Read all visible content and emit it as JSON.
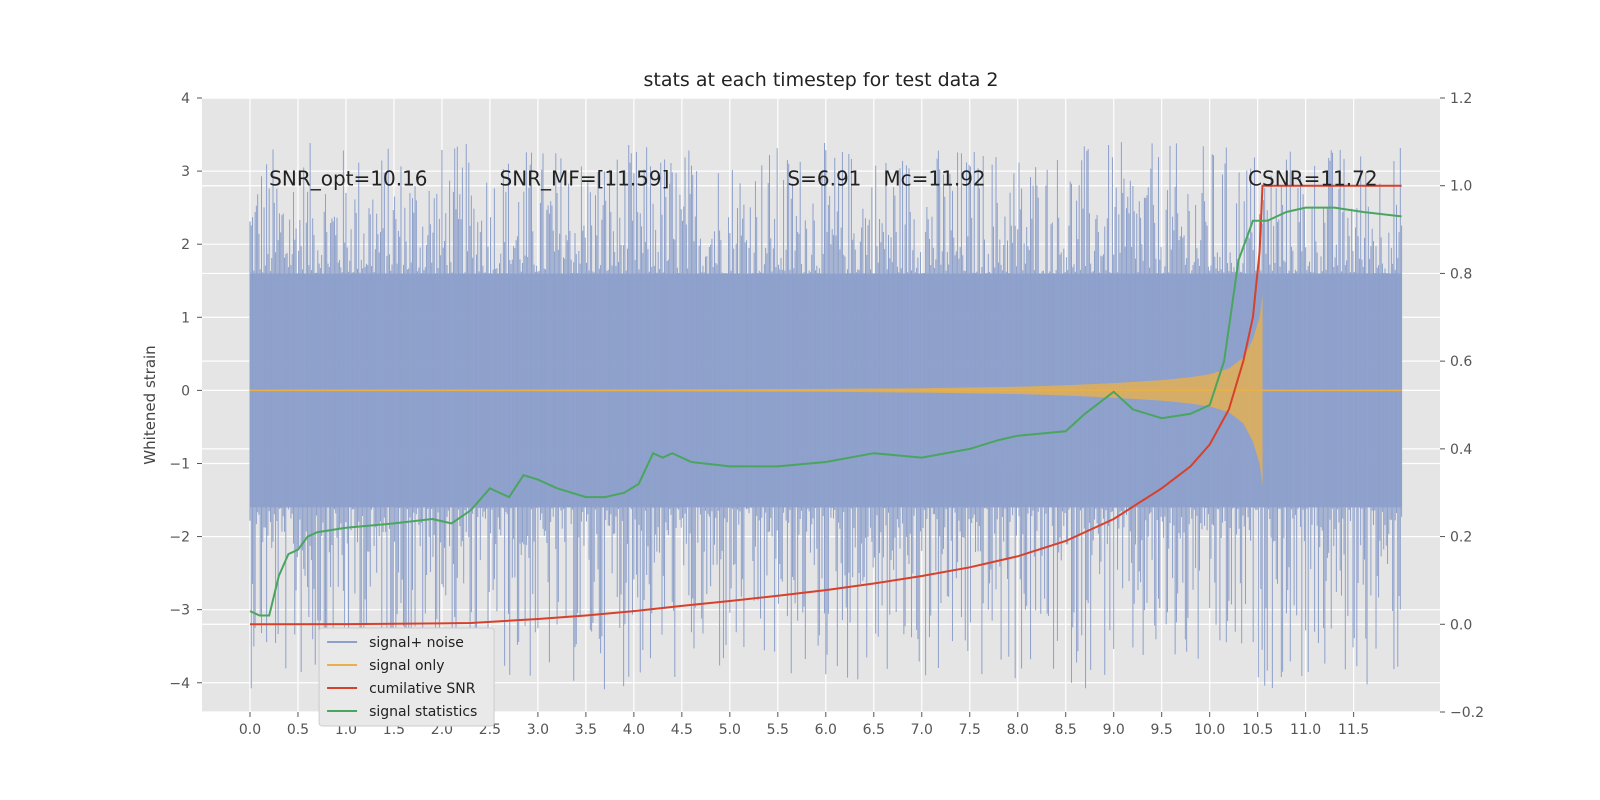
{
  "chart_data": {
    "type": "line",
    "title": "stats at each timestep for test data 2",
    "ylabel": "Whitened strain",
    "xlabel": "",
    "xlim": [
      -0.5,
      12.4
    ],
    "ylim_left": [
      -4.4,
      4.0
    ],
    "ylim_right": [
      -0.2,
      1.2
    ],
    "grid": true,
    "xticks": [
      {
        "value": 0.0,
        "label": "0.0"
      },
      {
        "value": 0.5,
        "label": "0.5"
      },
      {
        "value": 1.0,
        "label": "1.0"
      },
      {
        "value": 1.5,
        "label": "1.5"
      },
      {
        "value": 2.0,
        "label": "2.0"
      },
      {
        "value": 2.5,
        "label": "2.5"
      },
      {
        "value": 3.0,
        "label": "3.0"
      },
      {
        "value": 3.5,
        "label": "3.5"
      },
      {
        "value": 4.0,
        "label": "4.0"
      },
      {
        "value": 4.5,
        "label": "4.5"
      },
      {
        "value": 5.0,
        "label": "5.0"
      },
      {
        "value": 5.5,
        "label": "5.5"
      },
      {
        "value": 6.0,
        "label": "6.0"
      },
      {
        "value": 6.5,
        "label": "6.5"
      },
      {
        "value": 7.0,
        "label": "7.0"
      },
      {
        "value": 7.5,
        "label": "7.5"
      },
      {
        "value": 8.0,
        "label": "8.0"
      },
      {
        "value": 8.5,
        "label": "8.5"
      },
      {
        "value": 9.0,
        "label": "9.0"
      },
      {
        "value": 9.5,
        "label": "9.5"
      },
      {
        "value": 10.0,
        "label": "10.0"
      },
      {
        "value": 10.5,
        "label": "10.5"
      },
      {
        "value": 11.0,
        "label": "11.0"
      },
      {
        "value": 11.5,
        "label": "11.5"
      }
    ],
    "yticks_left": [
      {
        "value": 4,
        "label": "4"
      },
      {
        "value": 3,
        "label": "3"
      },
      {
        "value": 2,
        "label": "2"
      },
      {
        "value": 1,
        "label": "1"
      },
      {
        "value": 0,
        "label": "0"
      },
      {
        "value": -1,
        "label": "−1"
      },
      {
        "value": -2,
        "label": "−2"
      },
      {
        "value": -3,
        "label": "−3"
      },
      {
        "value": -4,
        "label": "−4"
      }
    ],
    "yticks_right": [
      {
        "value": 1.2,
        "label": "1.2"
      },
      {
        "value": 1.0,
        "label": "1.0"
      },
      {
        "value": 0.8,
        "label": "0.8"
      },
      {
        "value": 0.6,
        "label": "0.6"
      },
      {
        "value": 0.4,
        "label": "0.4"
      },
      {
        "value": 0.2,
        "label": "0.2"
      },
      {
        "value": 0.0,
        "label": "0.0"
      },
      {
        "value": -0.2,
        "label": "−0.2"
      }
    ],
    "annotations": [
      {
        "name": "snr-opt",
        "text": "SNR_opt=10.16",
        "x": 0.2,
        "y": 2.9
      },
      {
        "name": "snr-mf",
        "text": "SNR_MF=[11.59]",
        "x": 2.6,
        "y": 2.9
      },
      {
        "name": "s-value",
        "text": "S=6.91",
        "x": 5.6,
        "y": 2.9
      },
      {
        "name": "mc-value",
        "text": "Mc=11.92",
        "x": 6.6,
        "y": 2.9
      },
      {
        "name": "csnr",
        "text": "CSNR=11.72",
        "x": 10.4,
        "y": 2.9
      }
    ],
    "series": [
      {
        "name": "signal+ noise",
        "axis": "left",
        "color": "#8da0cb",
        "style": "noise",
        "x_range": [
          0.0,
          12.0
        ],
        "envelope": 1.6,
        "spike_max": 3.4,
        "spike_min": -4.1
      },
      {
        "name": "signal only",
        "axis": "left",
        "color": "#e8b04c",
        "style": "chirp",
        "x": [
          0.0,
          2.0,
          4.0,
          6.0,
          7.0,
          8.0,
          8.5,
          9.0,
          9.5,
          9.8,
          10.0,
          10.2,
          10.35,
          10.45,
          10.52,
          10.55
        ],
        "amplitude": [
          0.005,
          0.008,
          0.012,
          0.02,
          0.03,
          0.05,
          0.07,
          0.1,
          0.14,
          0.18,
          0.22,
          0.3,
          0.45,
          0.7,
          1.0,
          1.3
        ]
      },
      {
        "name": "cumilative SNR",
        "axis": "right",
        "color": "#d7412b",
        "x": [
          0.0,
          1.0,
          2.0,
          2.3,
          3.0,
          3.5,
          4.0,
          4.5,
          5.0,
          5.5,
          6.0,
          6.5,
          7.0,
          7.5,
          8.0,
          8.5,
          9.0,
          9.5,
          9.8,
          10.0,
          10.2,
          10.35,
          10.45,
          10.52,
          10.55,
          11.0,
          11.5,
          12.0
        ],
        "values": [
          0.0,
          0.0005,
          0.002,
          0.003,
          0.012,
          0.02,
          0.03,
          0.042,
          0.053,
          0.065,
          0.078,
          0.093,
          0.11,
          0.13,
          0.155,
          0.19,
          0.24,
          0.31,
          0.36,
          0.41,
          0.49,
          0.6,
          0.7,
          0.85,
          1.0,
          1.0,
          1.0,
          1.0
        ]
      },
      {
        "name": "signal statistics",
        "axis": "right",
        "color": "#4aa55f",
        "x": [
          0.0,
          0.1,
          0.2,
          0.3,
          0.4,
          0.5,
          0.6,
          0.7,
          1.0,
          1.5,
          1.9,
          2.1,
          2.3,
          2.5,
          2.7,
          2.85,
          3.0,
          3.2,
          3.5,
          3.7,
          3.9,
          4.05,
          4.2,
          4.3,
          4.4,
          4.6,
          5.0,
          5.5,
          6.0,
          6.5,
          7.0,
          7.5,
          7.8,
          8.0,
          8.5,
          8.7,
          9.0,
          9.2,
          9.5,
          9.8,
          10.0,
          10.15,
          10.3,
          10.45,
          10.6,
          10.8,
          11.0,
          11.3,
          11.6,
          12.0
        ],
        "values": [
          0.03,
          0.02,
          0.02,
          0.11,
          0.16,
          0.17,
          0.2,
          0.21,
          0.22,
          0.23,
          0.24,
          0.23,
          0.26,
          0.31,
          0.29,
          0.34,
          0.33,
          0.31,
          0.29,
          0.29,
          0.3,
          0.32,
          0.39,
          0.38,
          0.39,
          0.37,
          0.36,
          0.36,
          0.37,
          0.39,
          0.38,
          0.4,
          0.42,
          0.43,
          0.44,
          0.48,
          0.53,
          0.49,
          0.47,
          0.48,
          0.5,
          0.6,
          0.83,
          0.92,
          0.92,
          0.94,
          0.95,
          0.95,
          0.94,
          0.93
        ]
      }
    ],
    "legend": {
      "placement": "lower-left",
      "entries": [
        {
          "label": "signal+ noise",
          "color": "#8da0cb"
        },
        {
          "label": "signal only",
          "color": "#e8b04c"
        },
        {
          "label": "cumilative SNR",
          "color": "#d7412b"
        },
        {
          "label": "signal statistics",
          "color": "#4aa55f"
        }
      ]
    }
  }
}
